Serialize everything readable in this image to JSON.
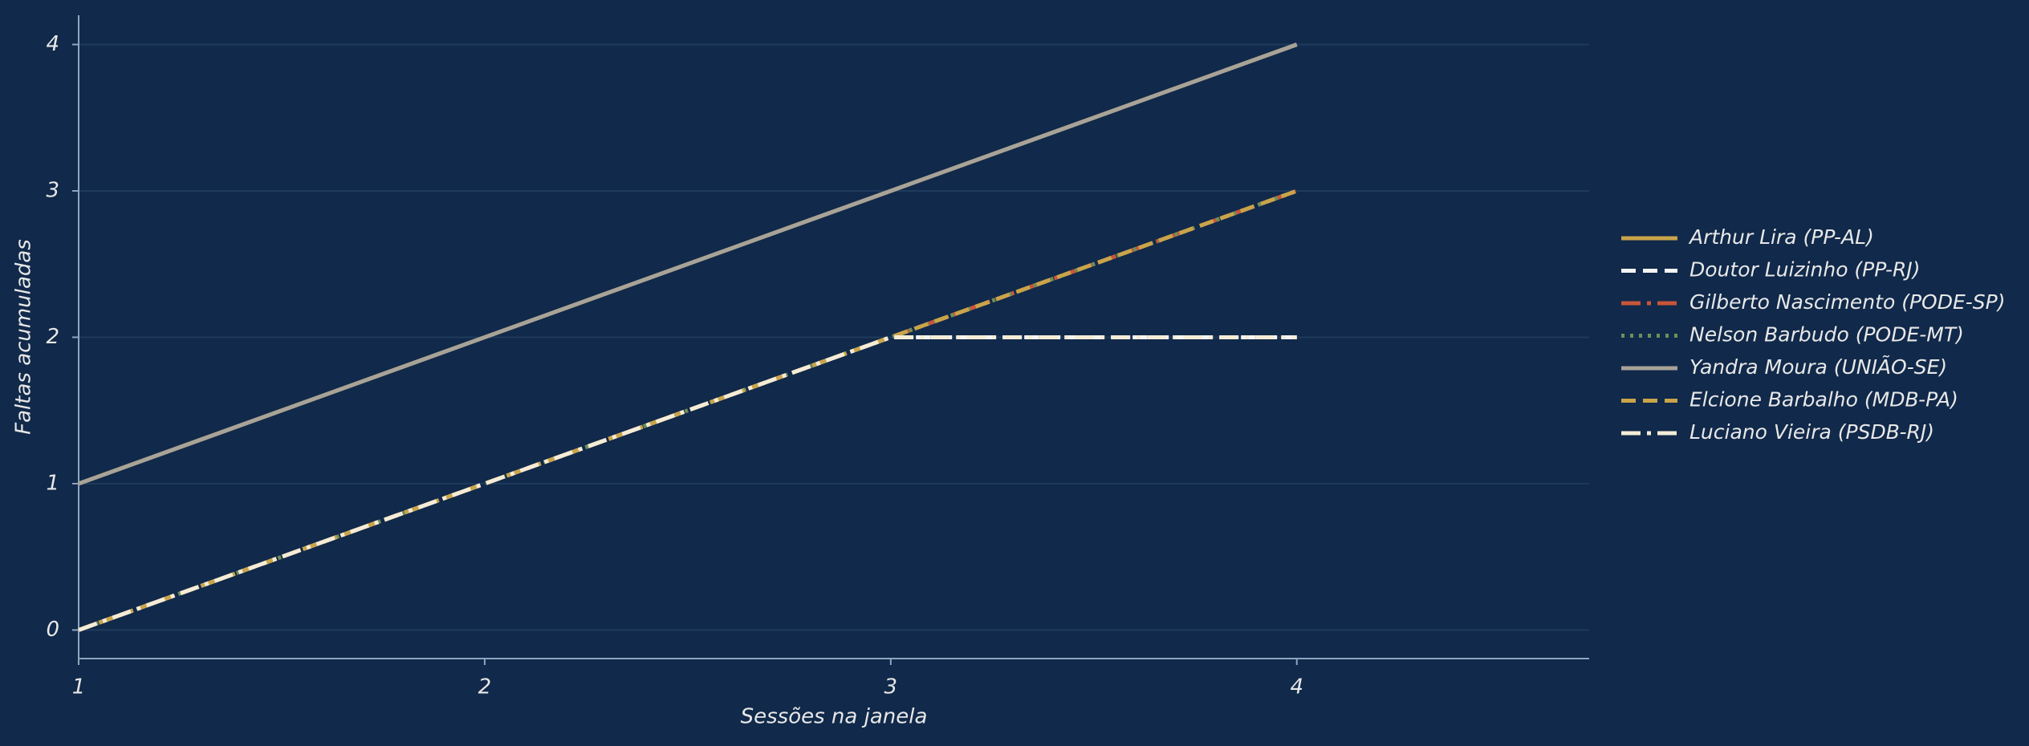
{
  "chart_data": {
    "type": "line",
    "x_label": "Sessões na janela",
    "y_label": "Faltas acumuladas",
    "x": [
      1,
      2,
      3,
      4
    ],
    "xlim": [
      1,
      4.72
    ],
    "ylim": [
      -0.195,
      4.2
    ],
    "xticks": [
      1,
      2,
      3,
      4
    ],
    "yticks": [
      0,
      1,
      2,
      3,
      4
    ],
    "grid": true,
    "legend": "right",
    "series": [
      {
        "name": "Arthur Lira (PP-AL)",
        "color": "#c9a44a",
        "linestyle": "solid",
        "values": [
          1,
          2,
          3,
          4
        ]
      },
      {
        "name": "Doutor Luizinho (PP-RJ)",
        "color": "#f4f4f4",
        "linestyle": "dashed",
        "values": [
          0,
          1,
          2,
          2
        ]
      },
      {
        "name": "Gilberto Nascimento (PODE-SP)",
        "color": "#c9553a",
        "linestyle": "dashdot",
        "values": [
          0,
          1,
          2,
          3
        ]
      },
      {
        "name": "Nelson Barbudo (PODE-MT)",
        "color": "#6d8f5a",
        "linestyle": "dotted",
        "values": [
          0,
          1,
          2,
          3
        ]
      },
      {
        "name": "Yandra Moura (UNIÃO-SE)",
        "color": "#a8a398",
        "linestyle": "solid",
        "values": [
          1,
          2,
          3,
          4
        ]
      },
      {
        "name": "Elcione Barbalho (MDB-PA)",
        "color": "#c9a44a",
        "linestyle": "dashed",
        "values": [
          0,
          1,
          2,
          3
        ]
      },
      {
        "name": "Luciano Vieira (PSDB-RJ)",
        "color": "#f5ecd7",
        "linestyle": "dashdot",
        "values": [
          0,
          1,
          2,
          2
        ]
      }
    ]
  }
}
